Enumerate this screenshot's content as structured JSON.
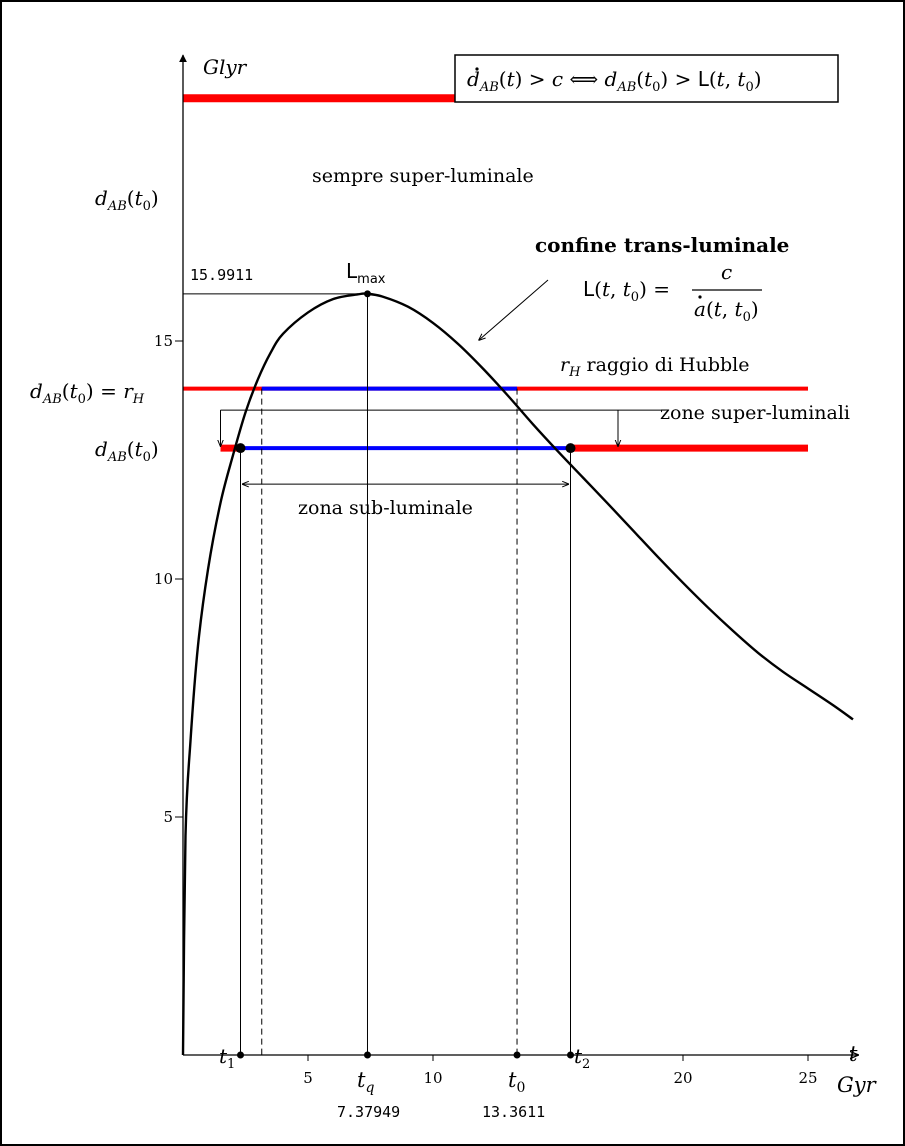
{
  "chart_data": {
    "type": "line",
    "xlabel_t": "t",
    "xlabel_unit": "Gyr",
    "ylabel": "Glyr",
    "xlim": [
      0,
      27
    ],
    "ylim": [
      0,
      20.4
    ],
    "x_ticks": [
      {
        "value": 5,
        "label": "5"
      },
      {
        "value": 10,
        "label": "10"
      },
      {
        "value": 20,
        "label": "20"
      },
      {
        "value": 25,
        "label": "25"
      }
    ],
    "y_ticks": [
      {
        "value": 5,
        "label": "5"
      },
      {
        "value": 10,
        "label": "10"
      },
      {
        "value": 15,
        "label": "15"
      }
    ],
    "curve": {
      "name": "L(t, t0)",
      "x": [
        0,
        0.1,
        0.3,
        0.6,
        1.0,
        1.5,
        2.0,
        2.5,
        3.0,
        3.5,
        4.0,
        5.0,
        6.0,
        7.0,
        7.38,
        8.0,
        9.0,
        10.0,
        11.0,
        12.0,
        13.0,
        14.0,
        15.0,
        16.0,
        17.0,
        18.0,
        19.0,
        20.0,
        21.0,
        22.0,
        23.0,
        24.0,
        25.0,
        26.0,
        26.8
      ],
      "y": [
        0,
        4.6,
        6.6,
        8.6,
        10.2,
        11.6,
        12.6,
        13.5,
        14.2,
        14.75,
        15.15,
        15.6,
        15.88,
        15.98,
        15.9911,
        15.93,
        15.72,
        15.38,
        14.94,
        14.42,
        13.85,
        13.25,
        12.68,
        12.13,
        11.58,
        11.02,
        10.46,
        9.92,
        9.4,
        8.91,
        8.45,
        8.05,
        7.7,
        7.35,
        7.05
      ]
    },
    "levels": {
      "top": 20.1,
      "hubble": 14.0,
      "low": 12.75
    },
    "markers": {
      "t1": 2.3,
      "t_left_dash": 3.15,
      "tq": 7.37949,
      "t0": 13.3611,
      "t2": 15.5,
      "lmax": 15.9911
    },
    "value_labels": {
      "lmax_value": "15.9911",
      "tq_value": "7.37949",
      "t0_value": "13.3611"
    },
    "annotations": {
      "always": "sempre super-luminale",
      "boundary_title": "confine trans-luminale",
      "hubble_suffix": "raggio di Hubble",
      "super_zones": "zone super-luminali",
      "sub_zone": "zona sub-luminale",
      "lmax": "L",
      "lmax_sub": "max"
    },
    "colors": {
      "red": "#ff0000",
      "blue": "#0000ff",
      "black": "#000000"
    }
  }
}
